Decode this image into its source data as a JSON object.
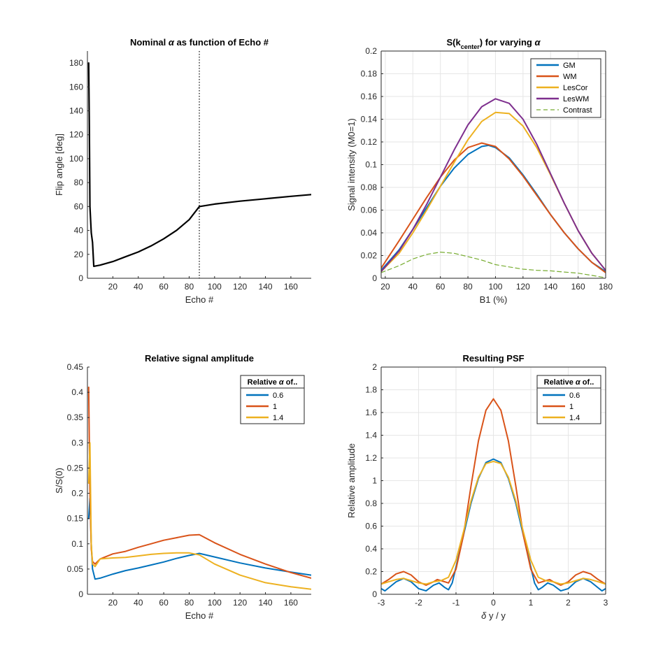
{
  "figure": {
    "background": "#ffffff"
  },
  "chart_data": [
    {
      "id": "p1",
      "type": "line",
      "title_parts": [
        "Nominal ",
        "α",
        " as function of Echo #"
      ],
      "xlabel": "Echo #",
      "ylabel": "Flip angle [deg]",
      "xlim": [
        0,
        176
      ],
      "ylim": [
        0,
        190
      ],
      "xticks": [
        20,
        40,
        60,
        80,
        100,
        120,
        140,
        160
      ],
      "yticks": [
        0,
        20,
        40,
        60,
        80,
        100,
        120,
        140,
        160,
        180
      ],
      "grid": false,
      "vline": {
        "x": 88,
        "style": "dotted",
        "color": "#000000"
      },
      "series": [
        {
          "name": "Flip angle",
          "color": "#000000",
          "width": 2.2,
          "x": [
            1,
            1.5,
            2,
            3,
            4,
            5,
            10,
            20,
            30,
            40,
            50,
            60,
            70,
            80,
            88,
            100,
            120,
            140,
            160,
            176
          ],
          "y": [
            180,
            130,
            60,
            38,
            30,
            10,
            11,
            14,
            18,
            22,
            27,
            33,
            40,
            49,
            60,
            62,
            64.5,
            66.5,
            68.5,
            70
          ]
        }
      ]
    },
    {
      "id": "p2",
      "type": "line",
      "title_parts": [
        "S(k",
        "center",
        ") for varying ",
        "α"
      ],
      "xlabel": "B1 (%)",
      "ylabel": "Signal intensity (M0=1)",
      "xlim": [
        17,
        180
      ],
      "ylim": [
        0,
        0.2
      ],
      "xticks": [
        20,
        40,
        60,
        80,
        100,
        120,
        140,
        160,
        180
      ],
      "yticks": [
        0,
        0.02,
        0.04,
        0.06,
        0.08,
        0.1,
        0.12,
        0.14,
        0.16,
        0.18,
        0.2
      ],
      "ytick_labels": [
        "0",
        "0.02",
        "0.04",
        "0.06",
        "0.08",
        "0.1",
        "0.12",
        "0.14",
        "0.16",
        "0.18",
        "0.2"
      ],
      "grid": true,
      "legend": {
        "placement": "top-right",
        "title": ""
      },
      "series": [
        {
          "name": "GM",
          "color": "#0072BD",
          "width": 2,
          "x": [
            17,
            30,
            40,
            50,
            60,
            70,
            80,
            90,
            95,
            100,
            110,
            120,
            130,
            140,
            150,
            160,
            170,
            180
          ],
          "y": [
            0.007,
            0.025,
            0.043,
            0.062,
            0.081,
            0.097,
            0.109,
            0.116,
            0.117,
            0.115,
            0.106,
            0.091,
            0.074,
            0.056,
            0.04,
            0.026,
            0.014,
            0.006
          ]
        },
        {
          "name": "WM",
          "color": "#D95319",
          "width": 2,
          "x": [
            17,
            30,
            40,
            50,
            60,
            70,
            80,
            90,
            100,
            110,
            120,
            130,
            140,
            150,
            160,
            170,
            180
          ],
          "y": [
            0.009,
            0.033,
            0.052,
            0.071,
            0.089,
            0.104,
            0.115,
            0.119,
            0.116,
            0.105,
            0.09,
            0.073,
            0.056,
            0.04,
            0.026,
            0.014,
            0.005
          ]
        },
        {
          "name": "LesCor",
          "color": "#EDB120",
          "width": 2,
          "x": [
            17,
            30,
            40,
            50,
            60,
            70,
            80,
            90,
            100,
            110,
            120,
            130,
            140,
            150,
            160,
            170,
            180
          ],
          "y": [
            0.006,
            0.022,
            0.04,
            0.06,
            0.081,
            0.102,
            0.122,
            0.138,
            0.146,
            0.145,
            0.134,
            0.115,
            0.091,
            0.066,
            0.042,
            0.022,
            0.007
          ]
        },
        {
          "name": "LesWM",
          "color": "#7E2F8E",
          "width": 2,
          "x": [
            17,
            30,
            40,
            50,
            60,
            70,
            80,
            90,
            100,
            110,
            120,
            130,
            140,
            150,
            160,
            170,
            180
          ],
          "y": [
            0.006,
            0.024,
            0.043,
            0.065,
            0.089,
            0.113,
            0.135,
            0.151,
            0.158,
            0.154,
            0.14,
            0.118,
            0.092,
            0.066,
            0.042,
            0.022,
            0.007
          ]
        },
        {
          "name": "Contrast",
          "color": "#77AC30",
          "width": 1.2,
          "dashed": true,
          "x": [
            17,
            30,
            40,
            50,
            60,
            70,
            80,
            90,
            100,
            110,
            120,
            130,
            140,
            150,
            160,
            170,
            180
          ],
          "y": [
            0.005,
            0.011,
            0.017,
            0.021,
            0.023,
            0.022,
            0.019,
            0.016,
            0.012,
            0.01,
            0.008,
            0.007,
            0.0065,
            0.0055,
            0.0045,
            0.0025,
            0.0005
          ]
        }
      ]
    },
    {
      "id": "p3",
      "type": "line",
      "title_parts": [
        "Relative signal amplitude"
      ],
      "xlabel": "Echo #",
      "ylabel": "S/S(0)",
      "xlim": [
        0,
        176
      ],
      "ylim": [
        0,
        0.45
      ],
      "xticks": [
        20,
        40,
        60,
        80,
        100,
        120,
        140,
        160
      ],
      "yticks": [
        0,
        0.05,
        0.1,
        0.15,
        0.2,
        0.25,
        0.3,
        0.35,
        0.4,
        0.45
      ],
      "ytick_labels": [
        "0",
        "0.05",
        "0.1",
        "0.15",
        "0.2",
        "0.25",
        "0.3",
        "0.35",
        "0.4",
        "0.45"
      ],
      "grid": false,
      "legend": {
        "placement": "top-right",
        "title_parts": [
          "Relative ",
          "α",
          " of.."
        ]
      },
      "series": [
        {
          "name": "0.6",
          "color": "#0072BD",
          "width": 2,
          "x": [
            1,
            2,
            3,
            4,
            6,
            10,
            20,
            30,
            40,
            50,
            60,
            70,
            80,
            88,
            100,
            120,
            140,
            160,
            176
          ],
          "y": [
            0.15,
            0.19,
            0.1,
            0.05,
            0.03,
            0.032,
            0.04,
            0.047,
            0.052,
            0.058,
            0.064,
            0.071,
            0.077,
            0.081,
            0.074,
            0.062,
            0.052,
            0.044,
            0.038
          ]
        },
        {
          "name": "1",
          "color": "#D95319",
          "width": 2,
          "x": [
            1,
            2,
            3,
            4,
            6,
            10,
            20,
            30,
            40,
            50,
            60,
            70,
            80,
            88,
            100,
            120,
            140,
            160,
            176
          ],
          "y": [
            0.41,
            0.2,
            0.09,
            0.065,
            0.06,
            0.07,
            0.08,
            0.085,
            0.093,
            0.1,
            0.107,
            0.112,
            0.117,
            0.118,
            0.102,
            0.079,
            0.06,
            0.043,
            0.032
          ]
        },
        {
          "name": "1.4",
          "color": "#EDB120",
          "width": 2,
          "x": [
            1,
            2,
            3,
            4,
            6,
            10,
            20,
            30,
            40,
            50,
            60,
            70,
            80,
            88,
            100,
            120,
            140,
            160,
            176
          ],
          "y": [
            0.22,
            0.3,
            0.1,
            0.06,
            0.055,
            0.07,
            0.072,
            0.073,
            0.076,
            0.079,
            0.081,
            0.082,
            0.082,
            0.078,
            0.06,
            0.038,
            0.023,
            0.015,
            0.01
          ]
        }
      ]
    },
    {
      "id": "p4",
      "type": "line",
      "title_parts": [
        "Resulting PSF"
      ],
      "xlabel_parts": [
        "δ",
        " y / y"
      ],
      "ylabel": "Relative amplitude",
      "xlim": [
        -3,
        3
      ],
      "ylim": [
        0,
        2
      ],
      "xticks": [
        -3,
        -2,
        -1,
        0,
        1,
        2,
        3
      ],
      "yticks": [
        0,
        0.2,
        0.4,
        0.6,
        0.8,
        1,
        1.2,
        1.4,
        1.6,
        1.8,
        2
      ],
      "ytick_labels": [
        "0",
        "0.2",
        "0.4",
        "0.6",
        "0.8",
        "1",
        "1.2",
        "1.4",
        "1.6",
        "1.8",
        "2"
      ],
      "grid": true,
      "legend": {
        "placement": "top-right",
        "title_parts": [
          "Relative ",
          "α",
          " of.."
        ]
      },
      "series": [
        {
          "name": "0.6",
          "color": "#0072BD",
          "width": 2,
          "x": [
            -3,
            -2.9,
            -2.6,
            -2.4,
            -2.2,
            -2.0,
            -1.8,
            -1.6,
            -1.45,
            -1.3,
            -1.2,
            -1.1,
            -1.0,
            -0.8,
            -0.6,
            -0.4,
            -0.2,
            0,
            0.2,
            0.4,
            0.6,
            0.8,
            1.0,
            1.1,
            1.2,
            1.3,
            1.45,
            1.6,
            1.8,
            2.0,
            2.2,
            2.4,
            2.6,
            2.9,
            3
          ],
          "y": [
            0.05,
            0.03,
            0.11,
            0.14,
            0.11,
            0.05,
            0.03,
            0.08,
            0.1,
            0.06,
            0.04,
            0.1,
            0.24,
            0.52,
            0.8,
            1.02,
            1.16,
            1.19,
            1.16,
            1.02,
            0.8,
            0.52,
            0.24,
            0.1,
            0.04,
            0.06,
            0.1,
            0.08,
            0.03,
            0.05,
            0.11,
            0.14,
            0.11,
            0.03,
            0.05
          ]
        },
        {
          "name": "1",
          "color": "#D95319",
          "width": 2,
          "x": [
            -3,
            -2.8,
            -2.6,
            -2.4,
            -2.2,
            -2.0,
            -1.8,
            -1.6,
            -1.5,
            -1.4,
            -1.2,
            -1.0,
            -0.8,
            -0.6,
            -0.4,
            -0.2,
            0,
            0.2,
            0.4,
            0.6,
            0.8,
            1.0,
            1.2,
            1.4,
            1.5,
            1.6,
            1.8,
            2.0,
            2.2,
            2.4,
            2.6,
            2.8,
            3
          ],
          "y": [
            0.09,
            0.13,
            0.18,
            0.2,
            0.17,
            0.11,
            0.08,
            0.11,
            0.13,
            0.12,
            0.1,
            0.22,
            0.52,
            0.95,
            1.35,
            1.62,
            1.72,
            1.62,
            1.35,
            0.95,
            0.52,
            0.22,
            0.1,
            0.12,
            0.13,
            0.11,
            0.08,
            0.11,
            0.17,
            0.2,
            0.18,
            0.13,
            0.09
          ]
        },
        {
          "name": "1.4",
          "color": "#EDB120",
          "width": 2,
          "x": [
            -3,
            -2.8,
            -2.6,
            -2.4,
            -2.2,
            -2.0,
            -1.8,
            -1.6,
            -1.4,
            -1.2,
            -1.0,
            -0.8,
            -0.6,
            -0.4,
            -0.2,
            0,
            0.2,
            0.4,
            0.6,
            0.8,
            1.0,
            1.2,
            1.4,
            1.6,
            1.8,
            2.0,
            2.2,
            2.4,
            2.6,
            2.8,
            3
          ],
          "y": [
            0.09,
            0.11,
            0.13,
            0.14,
            0.12,
            0.1,
            0.09,
            0.11,
            0.12,
            0.15,
            0.3,
            0.55,
            0.82,
            1.03,
            1.15,
            1.17,
            1.15,
            1.03,
            0.82,
            0.55,
            0.3,
            0.15,
            0.12,
            0.11,
            0.09,
            0.1,
            0.12,
            0.14,
            0.13,
            0.11,
            0.09
          ]
        }
      ]
    }
  ]
}
